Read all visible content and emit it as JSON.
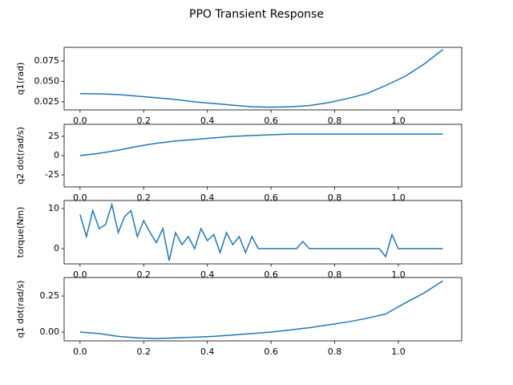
{
  "title": "PPO Transient Response",
  "chart_data": [
    {
      "type": "line",
      "ylabel": "q1(rad)",
      "color": "#1f77b4",
      "x": [
        0,
        0.06,
        0.12,
        0.18,
        0.24,
        0.3,
        0.36,
        0.42,
        0.48,
        0.54,
        0.6,
        0.66,
        0.72,
        0.78,
        0.84,
        0.9,
        0.96,
        1.02,
        1.08,
        1.14
      ],
      "values": [
        0.035,
        0.0348,
        0.034,
        0.032,
        0.03,
        0.028,
        0.025,
        0.023,
        0.021,
        0.019,
        0.0185,
        0.019,
        0.0205,
        0.024,
        0.029,
        0.035,
        0.045,
        0.056,
        0.071,
        0.089
      ],
      "xlim": [
        -0.05,
        1.199
      ],
      "xticks": [
        {
          "value": 0,
          "label": "0.0"
        },
        {
          "value": 0.2,
          "label": "0.2"
        },
        {
          "value": 0.4,
          "label": "0.4"
        },
        {
          "value": 0.6,
          "label": "0.6"
        },
        {
          "value": 0.8,
          "label": "0.8"
        },
        {
          "value": 1.0,
          "label": "1.0"
        }
      ],
      "ylim": [
        0.0152,
        0.0917
      ],
      "yticks": [
        {
          "value": 0.025,
          "label": "0.025"
        },
        {
          "value": 0.05,
          "label": "0.050"
        },
        {
          "value": 0.075,
          "label": "0.075"
        }
      ]
    },
    {
      "type": "line",
      "ylabel": "q2 dot(rad/s)",
      "color": "#1f77b4",
      "x": [
        0,
        0.06,
        0.12,
        0.18,
        0.24,
        0.3,
        0.36,
        0.42,
        0.48,
        0.54,
        0.6,
        0.66,
        0.72,
        0.78,
        0.84,
        0.9,
        0.96,
        1.02,
        1.08,
        1.14
      ],
      "values": [
        0,
        3,
        7,
        12,
        16,
        19,
        21,
        23,
        25,
        26,
        27,
        28,
        28,
        28,
        28,
        28,
        28,
        28,
        28,
        28
      ],
      "xlim": [
        -0.05,
        1.199
      ],
      "xticks": [
        {
          "value": 0,
          "label": "0.0"
        },
        {
          "value": 0.2,
          "label": "0.2"
        },
        {
          "value": 0.4,
          "label": "0.4"
        },
        {
          "value": 0.6,
          "label": "0.6"
        },
        {
          "value": 0.8,
          "label": "0.8"
        },
        {
          "value": 1.0,
          "label": "1.0"
        }
      ],
      "ylim": [
        -40.6,
        40.6
      ],
      "yticks": [
        -25,
        0,
        25
      ]
    },
    {
      "type": "line",
      "ylabel": "torque(Nm)",
      "color": "#1f77b4",
      "x": [
        0,
        0.02,
        0.04,
        0.06,
        0.08,
        0.1,
        0.12,
        0.14,
        0.16,
        0.18,
        0.2,
        0.22,
        0.24,
        0.26,
        0.28,
        0.3,
        0.32,
        0.34,
        0.36,
        0.38,
        0.4,
        0.42,
        0.44,
        0.46,
        0.48,
        0.5,
        0.52,
        0.54,
        0.56,
        0.58,
        0.6,
        0.62,
        0.64,
        0.66,
        0.68,
        0.7,
        0.72,
        0.74,
        0.76,
        0.78,
        0.8,
        0.82,
        0.84,
        0.86,
        0.88,
        0.9,
        0.92,
        0.94,
        0.96,
        0.98,
        1.0,
        1.02,
        1.04,
        1.06,
        1.08,
        1.1,
        1.12,
        1.14
      ],
      "values": [
        8.5,
        3,
        9.5,
        5,
        6,
        11,
        4,
        8,
        9.5,
        3,
        7,
        4,
        1.5,
        5,
        -3,
        4,
        1,
        3,
        0,
        5,
        2,
        3.5,
        -1,
        4,
        1,
        3,
        -1,
        3,
        0,
        0,
        0,
        0,
        0,
        0,
        0,
        1.8,
        0,
        0,
        0,
        0,
        0,
        0,
        0,
        0,
        0,
        0,
        0,
        0,
        -2,
        3.5,
        0,
        0,
        0,
        0,
        0,
        0,
        0,
        0
      ],
      "xlim": [
        -0.05,
        1.199
      ],
      "xticks": [
        {
          "value": 0,
          "label": "0.0"
        },
        {
          "value": 0.2,
          "label": "0.2"
        },
        {
          "value": 0.4,
          "label": "0.4"
        },
        {
          "value": 0.6,
          "label": "0.6"
        },
        {
          "value": 0.8,
          "label": "0.8"
        },
        {
          "value": 1.0,
          "label": "1.0"
        }
      ],
      "ylim": [
        -3.8,
        12
      ],
      "yticks": [
        0,
        10
      ]
    },
    {
      "type": "line",
      "ylabel": "q1 dot(rad/s)",
      "color": "#1f77b4",
      "x": [
        0,
        0.06,
        0.12,
        0.18,
        0.24,
        0.3,
        0.36,
        0.42,
        0.48,
        0.54,
        0.6,
        0.66,
        0.72,
        0.78,
        0.84,
        0.9,
        0.96,
        1.02,
        1.08,
        1.14
      ],
      "values": [
        0,
        -0.01,
        -0.03,
        -0.04,
        -0.045,
        -0.04,
        -0.035,
        -0.03,
        -0.02,
        -0.01,
        0,
        0.015,
        0.03,
        0.05,
        0.07,
        0.095,
        0.125,
        0.2,
        0.27,
        0.355
      ],
      "xlim": [
        -0.05,
        1.199
      ],
      "xticks": [
        {
          "value": 0,
          "label": "0.0"
        },
        {
          "value": 0.2,
          "label": "0.2"
        },
        {
          "value": 0.4,
          "label": "0.4"
        },
        {
          "value": 0.6,
          "label": "0.6"
        },
        {
          "value": 0.8,
          "label": "0.8"
        },
        {
          "value": 1.0,
          "label": "1.0"
        }
      ],
      "ylim": [
        -0.061,
        0.378
      ],
      "yticks": [
        {
          "value": 0,
          "label": "0.00"
        },
        {
          "value": 0.25,
          "label": "0.25"
        }
      ]
    }
  ]
}
